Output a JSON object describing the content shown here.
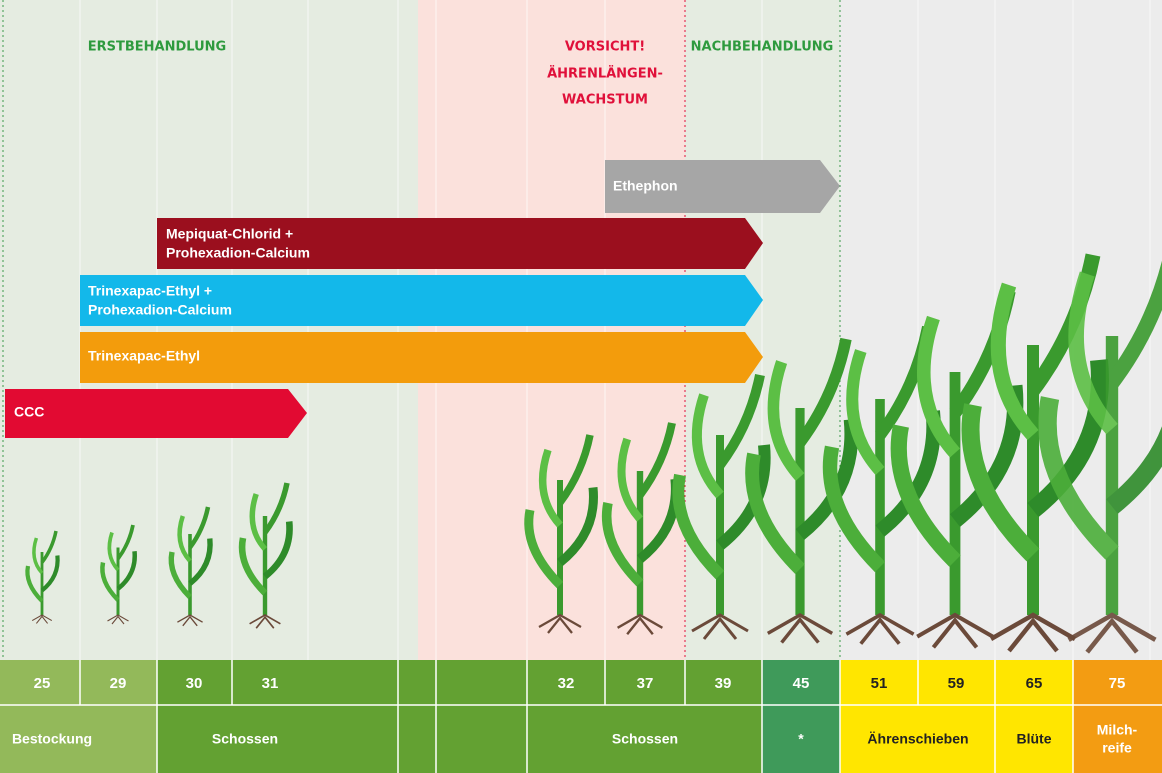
{
  "header": {
    "first": "ERSTBEHANDLUNG",
    "warning": [
      "VORSICHT!",
      "ÄHRENLÄNGEN-",
      "WACHSTUM"
    ],
    "second": "NACHBEHANDLUNG"
  },
  "bars": [
    {
      "label": [
        "Ethephon"
      ]
    },
    {
      "label": [
        "Mepiquat-Chlorid +",
        "Prohexadion-Calcium"
      ]
    },
    {
      "label": [
        "Trinexapac-Ethyl +",
        "Prohexadion-Calcium"
      ]
    },
    {
      "label": [
        "Trinexapac-Ethyl"
      ]
    },
    {
      "label": [
        "CCC"
      ]
    }
  ],
  "stages": [
    "25",
    "29",
    "30",
    "31",
    "32",
    "37",
    "39",
    "45",
    "51",
    "59",
    "65",
    "75"
  ],
  "phases": [
    [
      "Bestockung"
    ],
    [
      "Schossen"
    ],
    [
      "Schossen"
    ],
    [
      "*"
    ],
    [
      "Ährenschieben"
    ],
    [
      "Blüte"
    ],
    [
      "Milch-",
      "reife"
    ]
  ]
}
